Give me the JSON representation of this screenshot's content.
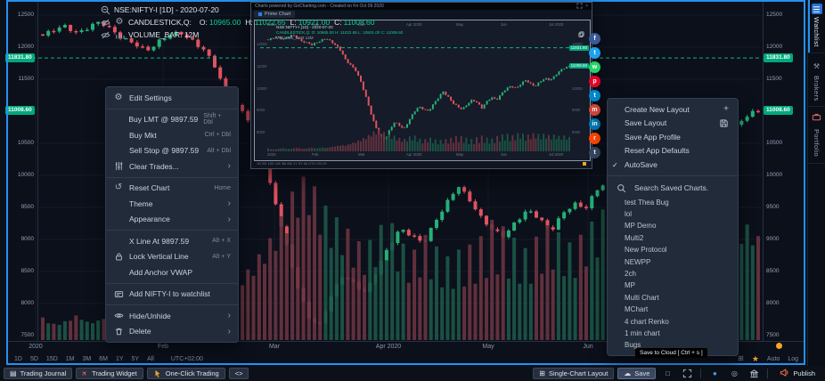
{
  "colors": {
    "up": "#26b079",
    "down": "#e15260",
    "vol_up": "#1d5848",
    "vol_down": "#6a3440",
    "badge": "#00a97c",
    "accent_blue": "#2492f0",
    "dashed_level": "#16b083",
    "star_orange": "#f5a623"
  },
  "legend": {
    "symbol": "NSE:NIFTY-I [1D] - 2020-07-20",
    "study": "CANDLESTICK,Q:",
    "ohlc": [
      [
        "O:",
        "10965.00"
      ],
      [
        "H:",
        "11022.65"
      ],
      [
        "L:",
        "10921.00"
      ],
      [
        "C:",
        "11008.60"
      ]
    ],
    "volume": "VOLUME_BAR: 12M"
  },
  "axis": {
    "y_ticks": [
      12500,
      12000,
      11500,
      10500,
      10000,
      9500,
      9000,
      8500,
      8000,
      7500
    ],
    "badges": [
      {
        "price": 11831.8,
        "text": "11831.80"
      },
      {
        "price": 11008.6,
        "text": "11008.60"
      }
    ],
    "x_labels": [
      {
        "text": "2020",
        "x": 40
      },
      {
        "text": "Feb",
        "x": 183
      },
      {
        "text": "Mar",
        "x": 308
      },
      {
        "text": "Apr 2020",
        "x": 436
      },
      {
        "text": "May",
        "x": 548
      },
      {
        "text": "Jun",
        "x": 660
      }
    ]
  },
  "toolbar": {
    "ranges": [
      "1D",
      "5D",
      "15D",
      "1M",
      "3M",
      "6M",
      "1Y",
      "5Y",
      "All"
    ],
    "timezone": "UTC+02:00",
    "auto": "Auto",
    "log": "Log"
  },
  "context_menu": {
    "sections": [
      [
        {
          "icon": "gear",
          "label": "Edit Settings"
        }
      ],
      [
        {
          "label": "Buy LMT @ 9897.59",
          "shortcut": "Shift + Dbl"
        },
        {
          "label": "Buy Mkt",
          "shortcut": "Ctrl + Dbl"
        },
        {
          "label": "Sell Stop @ 9897.59",
          "shortcut": "Alt + Dbl"
        },
        {
          "icon": "sliders",
          "label": "Clear Trades...",
          "submenu": true
        }
      ],
      [
        {
          "icon": "reset",
          "label": "Reset Chart",
          "shortcut": "Home"
        },
        {
          "label": "Theme",
          "submenu": true
        },
        {
          "label": "Appearance",
          "submenu": true
        }
      ],
      [
        {
          "label": "X Line At 9897.59",
          "shortcut": "Alt + X"
        },
        {
          "icon": "lock",
          "label": "Lock Vertical Line",
          "shortcut": "Alt + Y"
        },
        {
          "label": "Add Anchor VWAP"
        }
      ],
      [
        {
          "icon": "card-add",
          "label": "Add NIFTY-I to watchlist"
        }
      ],
      [
        {
          "icon": "eye",
          "label": "Hide/Unhide",
          "submenu": true
        },
        {
          "icon": "trash",
          "label": "Delete",
          "submenu": true
        }
      ]
    ]
  },
  "layout_menu": {
    "items": [
      {
        "label": "Create New Layout",
        "right_icon": "plus"
      },
      {
        "label": "Save Layout",
        "right_icon": "disk"
      },
      {
        "label": "Save App Profile"
      },
      {
        "label": "Reset App Defaults"
      },
      {
        "label": "AutoSave",
        "left_icon": "check"
      }
    ],
    "search_placeholder": "Search Saved Charts.",
    "saved": [
      "test Thea Bug",
      "lol",
      "MP Demo",
      "Multi2",
      "New Protocol",
      "NEWPP",
      "2ch",
      "MP",
      "Multi Chart",
      "MChart",
      "4 chart Renko",
      "1 min chart",
      "Bugs"
    ]
  },
  "tooltip": {
    "text": "Save to Cloud [ Ctrl + s ]"
  },
  "side_tabs": [
    {
      "label": "Watchlist",
      "icon": "list",
      "active": true
    },
    {
      "label": "Brokers",
      "icon": "wrench",
      "active": false
    },
    {
      "label": "Portfolio",
      "icon": "briefcase",
      "active": false
    }
  ],
  "bottom_bar": {
    "left": [
      {
        "type": "button",
        "icon": "journal",
        "label": "Trading Journal"
      },
      {
        "type": "button",
        "icon": "rocket",
        "label": "Trading Widget"
      },
      {
        "type": "button",
        "icon": "cursor",
        "label": "One-Click Trading"
      },
      {
        "type": "button",
        "label": "<>"
      }
    ],
    "right": [
      {
        "type": "button",
        "icon": "layout",
        "label": "Single-Chart Layout"
      },
      {
        "type": "button",
        "icon": "cloud",
        "label": "Save",
        "active": true
      },
      {
        "type": "icon-button",
        "icon": "square"
      },
      {
        "type": "icon-button",
        "icon": "expand"
      },
      {
        "type": "sep"
      },
      {
        "type": "icon-button",
        "icon": "circle-blue"
      },
      {
        "type": "icon-button",
        "icon": "target"
      },
      {
        "type": "icon-button",
        "icon": "bank"
      },
      {
        "type": "sep"
      },
      {
        "type": "button",
        "icon": "megaphone",
        "label": "Publish",
        "plain": true
      }
    ]
  },
  "popup": {
    "titlebar": "Charts powered by GoCharting.com  -  Created on Fri Oct 09 2020",
    "tab_label": "Prime Chart",
    "legend": [
      "NSE:NIFTY-I [1D] - 2020-07-20",
      "CANDLESTICK,Q: O: 10965.00 H: 11022.65 L: 10921.00 C: 11008.60",
      "VOLUME_BAR 12M"
    ],
    "x_labels": [
      "2020",
      "Feb",
      "Mar",
      "Apr 2020",
      "May",
      "Jun",
      "Jul 2020"
    ],
    "badges": [
      {
        "price": 11831.8,
        "text": "11831.80"
      },
      {
        "price": 11008.6,
        "text": "11008.60"
      }
    ],
    "ticks": [
      12000,
      11000,
      10000,
      9000,
      8000
    ]
  },
  "social": [
    {
      "name": "facebook",
      "color": "#3b5998",
      "glyph": "f"
    },
    {
      "name": "twitter",
      "color": "#1da1f2",
      "glyph": "t"
    },
    {
      "name": "whatsapp",
      "color": "#25d366",
      "glyph": "w"
    },
    {
      "name": "pinterest",
      "color": "#e60023",
      "glyph": "p"
    },
    {
      "name": "telegram",
      "color": "#0088cc",
      "glyph": "t"
    },
    {
      "name": "email",
      "color": "#d44638",
      "glyph": "m"
    },
    {
      "name": "linkedin",
      "color": "#0077b5",
      "glyph": "in"
    },
    {
      "name": "reddit",
      "color": "#ff4500",
      "glyph": "r"
    },
    {
      "name": "tumblr",
      "color": "#36465d",
      "glyph": "t"
    }
  ],
  "chart_data": {
    "type": "candlestick",
    "symbol": "NSE:NIFTY-I",
    "interval": "1D",
    "as_of_date": "2020-07-20",
    "last_candle": {
      "o": 10965.0,
      "h": 11022.65,
      "l": 10921.0,
      "c": 11008.6
    },
    "levels": [
      11831.8,
      11008.6
    ],
    "trade_level": 9897.59,
    "y_range": [
      7500,
      12500
    ],
    "x_labels": [
      "2020",
      "Feb",
      "Mar",
      "Apr 2020",
      "May",
      "Jun"
    ],
    "close_anchors": [
      12180,
      12260,
      12340,
      12220,
      12300,
      12400,
      12280,
      12120,
      12040,
      11960,
      12080,
      12180,
      12230,
      12100,
      11940,
      11680,
      11230,
      11050,
      10820,
      10320,
      9680,
      8980,
      8320,
      7800,
      7640,
      8120,
      8460,
      8300,
      8150,
      8560,
      8900,
      9150,
      9060,
      8960,
      9260,
      9560,
      9860,
      9610,
      9320,
      9160,
      9060,
      9260,
      9460,
      9360,
      9110,
      9380,
      9580,
      9480,
      9750,
      9950,
      10100,
      10000,
      10180,
      10350,
      10200,
      10100,
      10290,
      10430,
      10380,
      10550,
      10760,
      10920,
      11008
    ],
    "volume_anchors": [
      0.14,
      0.1,
      0.12,
      0.16,
      0.11,
      0.13,
      0.18,
      0.12,
      0.15,
      0.18,
      0.14,
      0.2,
      0.16,
      0.22,
      0.25,
      0.3,
      0.28,
      0.38,
      0.45,
      0.55,
      0.65,
      0.8,
      0.95,
      1.0,
      0.85,
      0.75,
      0.7,
      0.6,
      0.55,
      0.65,
      0.72,
      0.58,
      0.5,
      0.62,
      0.55,
      0.48,
      0.52,
      0.55,
      0.6,
      0.7,
      0.65,
      0.58,
      0.52,
      0.62,
      0.68,
      0.6,
      0.55,
      0.65,
      0.72,
      0.8,
      0.68,
      0.75,
      0.85,
      0.7,
      0.78,
      0.82,
      0.74,
      0.8,
      0.7,
      0.76,
      0.68,
      0.72,
      0.65
    ]
  }
}
